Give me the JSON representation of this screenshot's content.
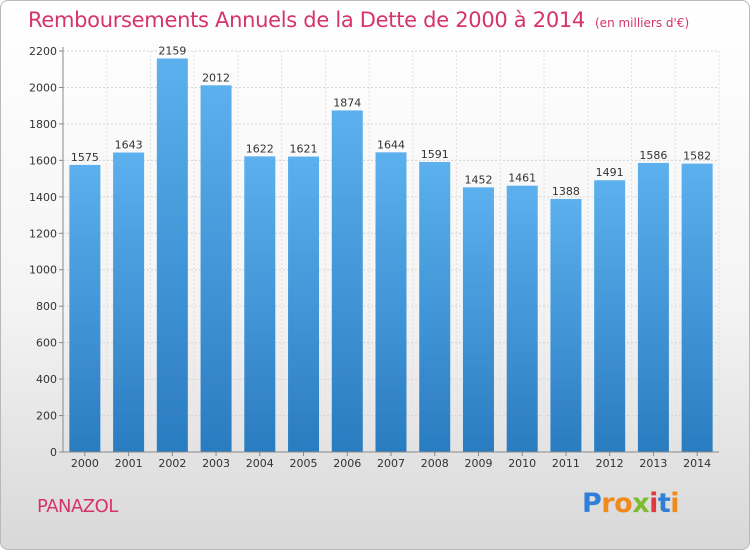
{
  "title": "Remboursements Annuels de la Dette de 2000 à 2014",
  "subtitle": "(en milliers d'€)",
  "place": "PANAZOL",
  "logo": {
    "letters": [
      {
        "ch": "P",
        "color": "#2f7fd8"
      },
      {
        "ch": "r",
        "color": "#f08a1c"
      },
      {
        "ch": "o",
        "color": "#f08a1c"
      },
      {
        "ch": "x",
        "color": "#7dbb2f"
      },
      {
        "ch": "i",
        "color": "#e03a3a"
      },
      {
        "ch": "t",
        "color": "#2f7fd8"
      },
      {
        "ch": "i",
        "color": "#f08a1c"
      }
    ]
  },
  "colors": {
    "bar_light": "#5cb0ee",
    "bar_dark": "#2a7cc0",
    "title": "#d6336c"
  },
  "chart_data": {
    "type": "bar",
    "title": "Remboursements Annuels de la Dette de 2000 à 2014",
    "subtitle": "(en milliers d'€)",
    "categories": [
      "2000",
      "2001",
      "2002",
      "2003",
      "2004",
      "2005",
      "2006",
      "2007",
      "2008",
      "2009",
      "2010",
      "2011",
      "2012",
      "2013",
      "2014"
    ],
    "values": [
      1575,
      1643,
      2159,
      2012,
      1622,
      1621,
      1874,
      1644,
      1591,
      1452,
      1461,
      1388,
      1491,
      1586,
      1582
    ],
    "yticks": [
      0,
      200,
      400,
      600,
      800,
      1000,
      1200,
      1400,
      1600,
      1800,
      2000,
      2200
    ],
    "ylim": [
      0,
      2200
    ],
    "grid": true,
    "data_labels": true
  }
}
